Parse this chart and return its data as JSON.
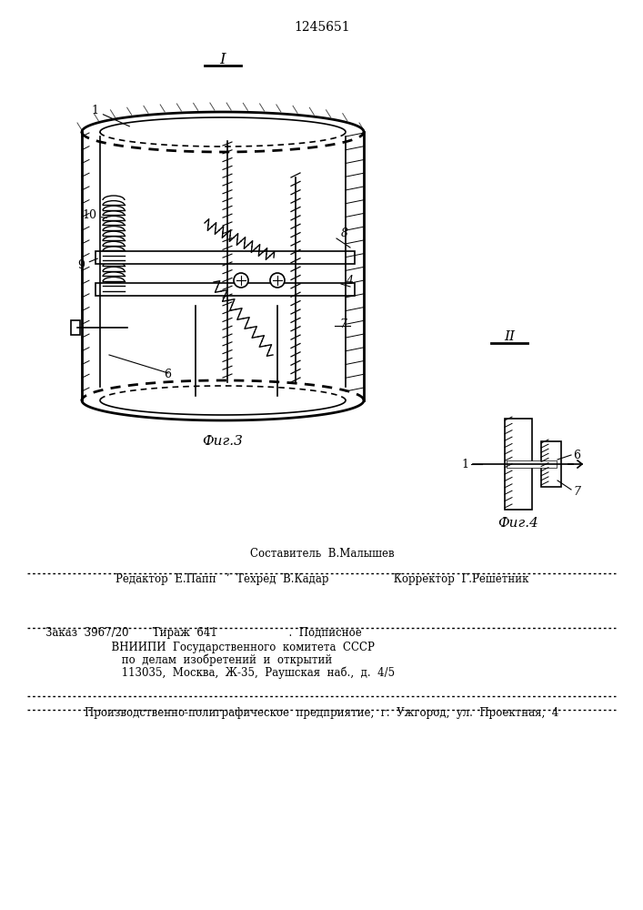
{
  "patent_number": "1245651",
  "fig3_label": "Фиг.3",
  "fig4_label": "Фиг.4",
  "roman_I": "I",
  "roman_II": "II",
  "composer_line": "Составитель  В.Малышев",
  "editor_line": "Редактор  Е.Папп   ’  Техред  В.Кадар                   Корректор  Г.Решетник",
  "order_line": "Заказ  3967/20       Тираж  641                     .  Подписное",
  "vniipи_line": "      ВНИИПИ  Государственного  комитета  СССР",
  "affairs_line": "         по  делам  изобретений  и  открытий",
  "address_line": "         113035,  Москва,  Ж-35,  Раушская  наб.,  д.  4/5",
  "production_line": "Производственно-полиграфическое  предприятие,  г.  Ужгород,  ул.  Проектная,  4",
  "bg_color": "#ffffff",
  "line_color": "#000000",
  "hatch_color": "#000000",
  "text_color": "#000000"
}
